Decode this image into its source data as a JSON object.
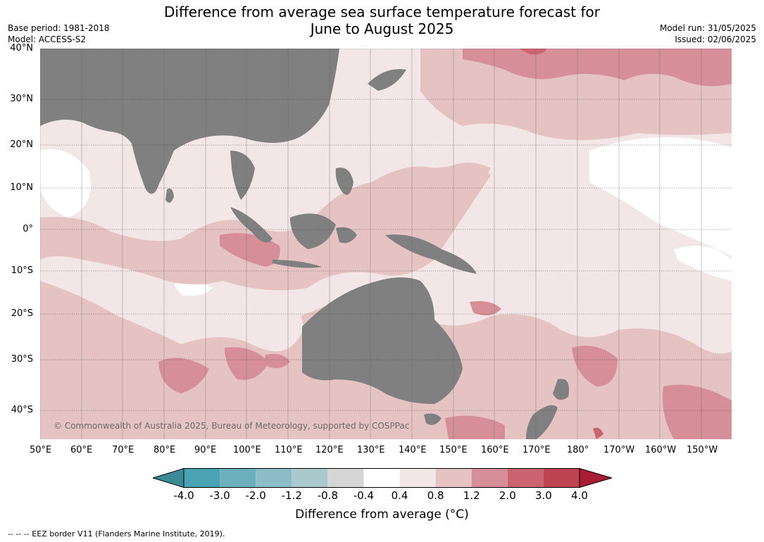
{
  "title_line1": "Difference from average sea surface temperature forecast for",
  "title_line2": "June to August 2025",
  "base_period": "Base period: 1981-2018",
  "model": "Model: ACCESS-S2",
  "model_run": "Model run: 31/05/2025",
  "issued": "Issued: 02/06/2025",
  "lat_labels": [
    "40°N",
    "30°N",
    "20°N",
    "10°N",
    "0°",
    "10°S",
    "20°S",
    "30°S",
    "40°S"
  ],
  "lon_labels": [
    "50°E",
    "60°E",
    "70°E",
    "80°E",
    "90°E",
    "100°E",
    "110°E",
    "120°E",
    "130°E",
    "140°E",
    "150°E",
    "160°E",
    "170°E",
    "180°",
    "170°W",
    "160°W",
    "150°W"
  ],
  "copyright": "© Commonwealth of Australia 2025, Bureau of Meteorology, supported by COSPPac",
  "colorbar": {
    "ticks": [
      "-4.0",
      "-3.0",
      "-2.0",
      "-1.2",
      "-0.8",
      "-0.4",
      "0.4",
      "0.8",
      "1.2",
      "2.0",
      "3.0",
      "4.0"
    ],
    "colors": [
      "#3c8a96",
      "#4aa3b2",
      "#6cb0bd",
      "#8cbcc7",
      "#a9c9cd",
      "#d6d6d6",
      "#ffffff",
      "#f3e6e6",
      "#e6c3c3",
      "#d68f99",
      "#c96470",
      "#bf4452",
      "#a81c34"
    ],
    "label": "Difference from average (°C)"
  },
  "land_color": "#808080",
  "footnote": "--  --  -- EEZ border V11 (Flanders Marine Institute, 2019)."
}
